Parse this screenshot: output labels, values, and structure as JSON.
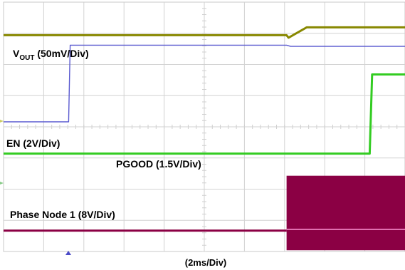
{
  "chart_data": {
    "type": "line",
    "x_axis_label": "(2ms/Div)",
    "grid": true,
    "x_divisions": 10,
    "y_divisions": 8,
    "x_range_div": [
      0,
      10
    ],
    "y_range_div": [
      0,
      8
    ],
    "trigger_marker": "bottom",
    "series": [
      {
        "name": "VOUT (50mV/Div)",
        "label_main": "V",
        "label_sub": "OUT",
        "label_tail": " (50mV/Div)",
        "color": "#888800",
        "points": [
          [
            0,
            6.94
          ],
          [
            7.05,
            6.94
          ],
          [
            7.1,
            6.86
          ],
          [
            7.55,
            7.19
          ],
          [
            10,
            7.19
          ]
        ]
      },
      {
        "name": "EN (2V/Div)",
        "label": "EN (2V/Div)",
        "color": "#5a5ad0",
        "points": [
          [
            0,
            4.16
          ],
          [
            1.62,
            4.16
          ],
          [
            1.66,
            6.62
          ],
          [
            7.05,
            6.62
          ],
          [
            7.15,
            6.58
          ],
          [
            10,
            6.58
          ]
        ]
      },
      {
        "name": "PGOOD (1.5V/Div)",
        "label": "PGOOD (1.5V/Div)",
        "color": "#33cc22",
        "points": [
          [
            0,
            3.14
          ],
          [
            9.12,
            3.14
          ],
          [
            9.18,
            5.68
          ],
          [
            10,
            5.68
          ]
        ]
      },
      {
        "name": "Phase Node 1 (8V/Div)",
        "label": "Phase Node 1 (8V/Div)",
        "color": "#8b0044",
        "points": [
          [
            0,
            0.67
          ],
          [
            7.05,
            0.67
          ]
        ],
        "switching_region": {
          "x_start": 7.05,
          "x_end": 10,
          "y_low": 0.04,
          "y_high": 2.43,
          "mid": 0.71
        }
      }
    ]
  }
}
